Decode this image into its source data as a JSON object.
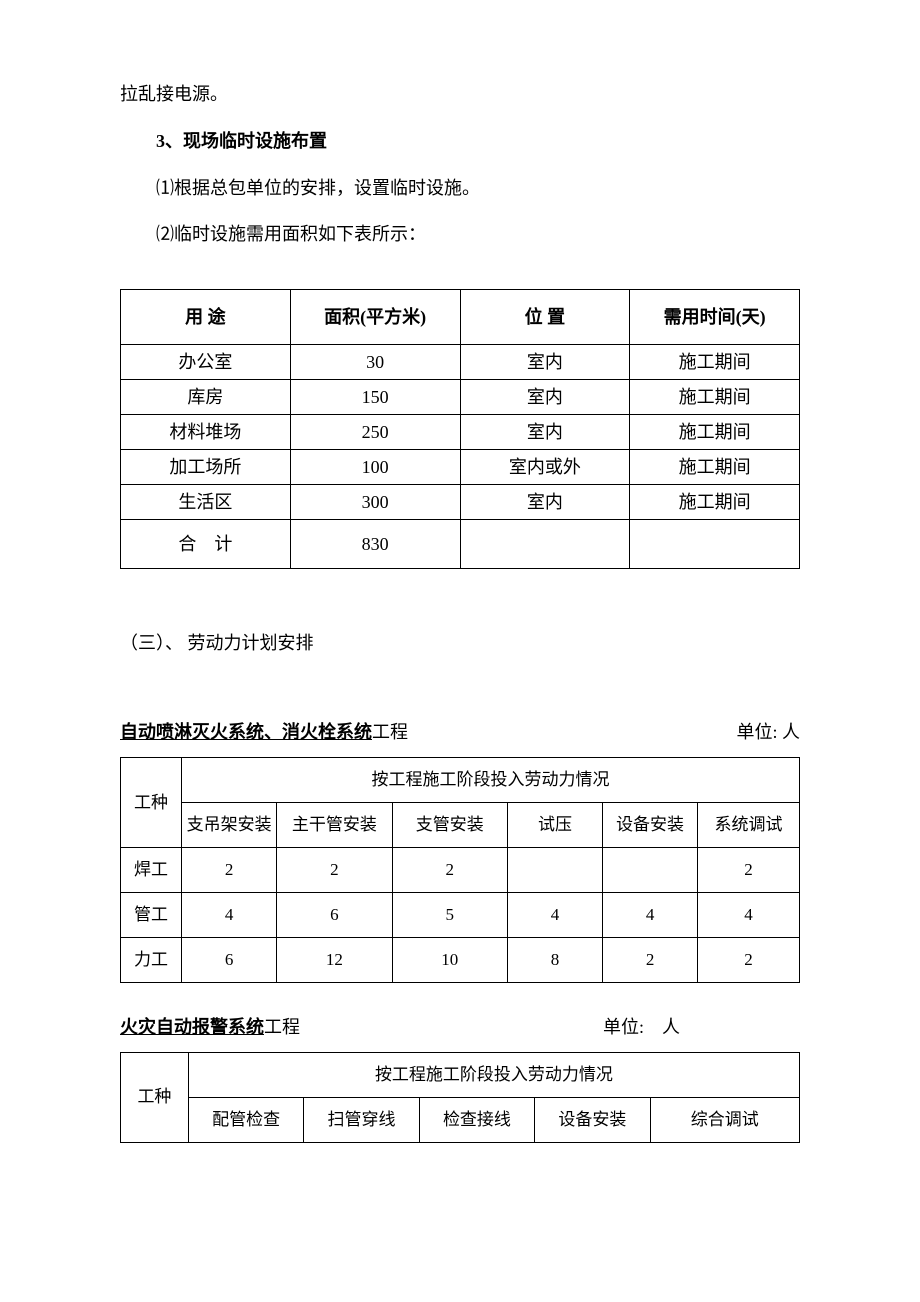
{
  "intro_trail": "拉乱接电源。",
  "sec3_title": "3、现场临时设施布置",
  "sec3_p1": "⑴根据总包单位的安排，设置临时设施。",
  "sec3_p2": "⑵临时设施需用面积如下表所示：",
  "table1": {
    "headers": [
      "用 途",
      "面积(平方米)",
      "位 置",
      "需用时间(天)"
    ],
    "rows": [
      [
        "办公室",
        "30",
        "室内",
        "施工期间"
      ],
      [
        "库房",
        "150",
        "室内",
        "施工期间"
      ],
      [
        "材料堆场",
        "250",
        "室内",
        "施工期间"
      ],
      [
        "加工场所",
        "100",
        "室内或外",
        "施工期间"
      ],
      [
        "生活区",
        "300",
        "室内",
        "施工期间"
      ],
      [
        "合　计",
        "830",
        "",
        ""
      ]
    ],
    "col_widths": [
      "25%",
      "25%",
      "25%",
      "25%"
    ]
  },
  "sec_labor_heading": "（三）、 劳动力计划安排",
  "table2": {
    "title_underline": "自动喷淋灭火系统、消火栓系统",
    "title_tail": "工程",
    "unit_label": "单位: 人",
    "row_label": "工种",
    "group_header": "按工程施工阶段投入劳动力情况",
    "stage_headers": [
      "支吊架安装",
      "主干管安装",
      "支管安装",
      "试压",
      "设备安装",
      "系统调试"
    ],
    "rows": [
      {
        "label": "焊工",
        "vals": [
          "2",
          "2",
          "2",
          "",
          "",
          "2"
        ]
      },
      {
        "label": "管工",
        "vals": [
          "4",
          "6",
          "5",
          "4",
          "4",
          "4"
        ]
      },
      {
        "label": "力工",
        "vals": [
          "6",
          "12",
          "10",
          "8",
          "2",
          "2"
        ]
      }
    ],
    "col_widths": [
      "9%",
      "14%",
      "17%",
      "17%",
      "14%",
      "14%",
      "15%"
    ]
  },
  "table3": {
    "title_underline": " 火灾自动报警系统",
    "title_tail": "工程",
    "unit_label": "单位:　人",
    "row_label": "工种",
    "group_header": "按工程施工阶段投入劳动力情况",
    "stage_headers": [
      "配管检查",
      "扫管穿线",
      "检查接线",
      "设备安装",
      "综合调试"
    ],
    "col_widths": [
      "10%",
      "17%",
      "17%",
      "17%",
      "17%",
      "22%"
    ]
  }
}
